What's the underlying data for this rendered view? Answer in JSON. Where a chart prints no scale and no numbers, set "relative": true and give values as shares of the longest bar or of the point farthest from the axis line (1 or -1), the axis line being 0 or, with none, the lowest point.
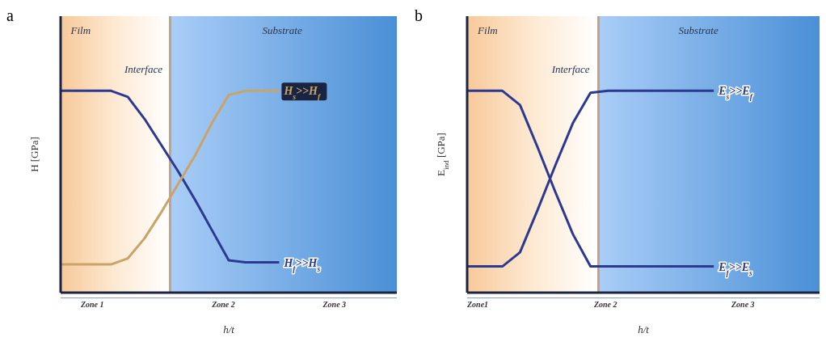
{
  "chart_data": [
    {
      "type": "line",
      "title": "a",
      "xlabel": "h/t",
      "ylabel": "H [GPa]",
      "relative": true,
      "categories": [
        null,
        null,
        null,
        null,
        null,
        null,
        null,
        null,
        null,
        null,
        null,
        null,
        null,
        null,
        null,
        null,
        null,
        null,
        null,
        null,
        null
      ],
      "series": [
        {
          "name": "H$_{f}$>>H$_{s}$",
          "color": "#2b3990",
          "values": [
            1,
            1,
            1,
            1,
            0.97,
            0.86,
            0.73,
            0.6,
            0.46,
            0.31,
            0.16,
            0.15,
            0.15,
            0.15,
            null,
            null,
            null,
            null,
            null,
            null,
            null
          ]
        },
        {
          "name": "H$_{s}$>>H$_{f}$",
          "color": "#c9a468",
          "values": [
            0.14,
            0.14,
            0.14,
            0.14,
            0.17,
            0.27,
            0.4,
            0.54,
            0.68,
            0.84,
            0.98,
            1,
            1,
            1,
            null,
            null,
            null,
            null,
            null,
            null,
            null
          ]
        }
      ],
      "annotations": [
        "Film",
        "Interface",
        "Substrate",
        "Zone 1",
        "Zone 2",
        "Zone 3"
      ],
      "legend": false,
      "grid": false,
      "marker": "none"
    },
    {
      "type": "line",
      "title": "b",
      "xlabel": "h/t",
      "ylabel": "E$_{ind}$ [GPa]",
      "relative": true,
      "categories": [
        null,
        null,
        null,
        null,
        null,
        null,
        null,
        null,
        null,
        null,
        null,
        null,
        null,
        null,
        null,
        null,
        null,
        null,
        null,
        null,
        null
      ],
      "series": [
        {
          "name": "E$_{f}$>>E$_{s}$",
          "color": "#2b3990",
          "values": [
            1,
            1,
            1,
            0.93,
            0.72,
            0.5,
            0.29,
            0.13,
            0.13,
            0.13,
            0.13,
            0.13,
            0.13,
            0.13,
            0.13,
            null,
            null,
            null,
            null,
            null,
            null
          ]
        },
        {
          "name": "E$_{s}$>>E$_{f}$",
          "color": "#2b3990",
          "values": [
            0.13,
            0.13,
            0.13,
            0.2,
            0.41,
            0.63,
            0.84,
            0.99,
            1,
            1,
            1,
            1,
            1,
            1,
            1,
            null,
            null,
            null,
            null,
            null,
            null
          ]
        }
      ],
      "annotations": [
        "Film",
        "Interface",
        "Substrate",
        "Zone1",
        "Zone 2",
        "Zone 3"
      ],
      "legend": false,
      "grid": false,
      "marker": "none"
    }
  ]
}
